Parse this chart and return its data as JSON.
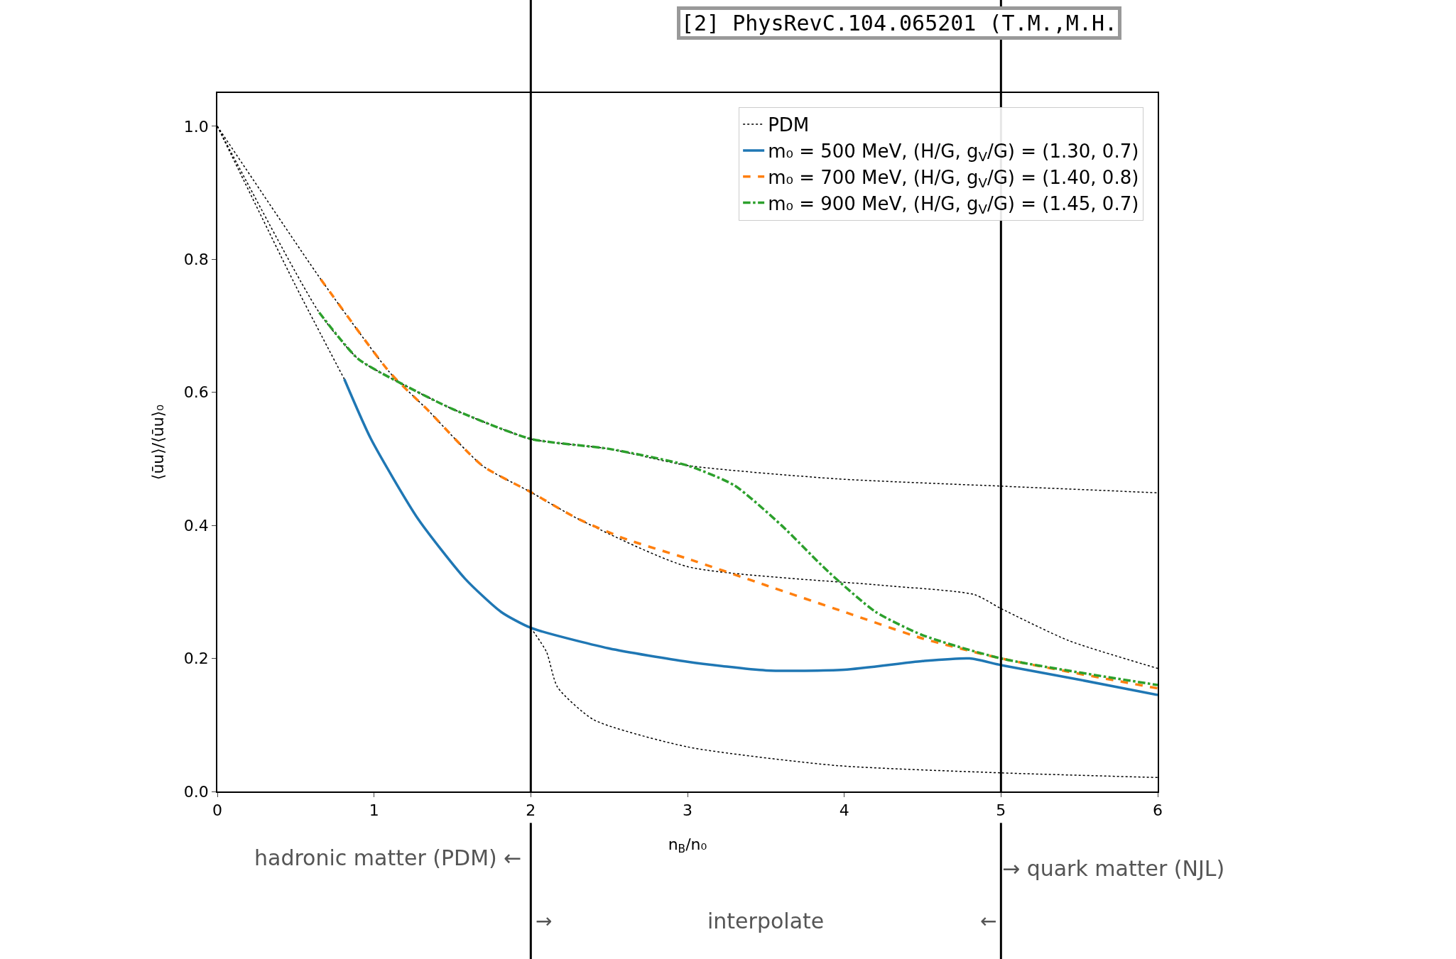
{
  "chart_data": {
    "type": "line",
    "xlabel": "n$_{B}$/n₀",
    "ylabel": "⟨ūu⟩/⟨ūu⟩₀",
    "xlim": [
      0,
      6
    ],
    "ylim": [
      0,
      1.05
    ],
    "xticks": [
      0,
      1,
      2,
      3,
      4,
      5,
      6
    ],
    "yticks": [
      {
        "value": 0,
        "label": "0.0"
      },
      0.2,
      0.4,
      0.6,
      0.8,
      {
        "value": 1,
        "label": "1.0"
      }
    ],
    "grid": false,
    "legend": "top right",
    "series": [
      {
        "name": "PDM",
        "color": "#000000",
        "line_style": "dotted",
        "x": [
          0,
          0.5,
          0.81,
          0.98,
          1.28,
          1.58,
          1.81,
          2,
          2.1,
          2.17,
          2.4,
          3,
          3.95,
          5,
          6
        ],
        "values": [
          1,
          0.76,
          0.62,
          null,
          null,
          null,
          null,
          0.246,
          0.21,
          0.157,
          0.108,
          0.067,
          0.039,
          0.028,
          0.021
        ]
      },
      {
        "color": "#000000",
        "line_style": "dotted",
        "x": [
          0,
          0.66,
          1.1,
          1.34,
          1.69,
          2,
          2.3,
          3,
          4.24,
          4.83,
          5,
          5.43,
          6
        ],
        "values": [
          1,
          0.77,
          0.63,
          0.574,
          0.49,
          0.45,
          0.41,
          0.338,
          0.31,
          0.296,
          0.275,
          0.227,
          0.185
        ]
      },
      {
        "color": "#000000",
        "line_style": "dotted",
        "x": [
          0,
          0.65,
          0.9,
          1.2,
          1.5,
          2,
          2.5,
          3,
          3.95,
          5,
          6
        ],
        "values": [
          1,
          0.72,
          0.65,
          0.61,
          0.575,
          0.53,
          0.515,
          0.49,
          0.47,
          0.459,
          0.449
        ]
      },
      {
        "name": "m₀ = 500 MeV, (H/G, g$_{V}$/G) = (1.30, 0.7)",
        "color": "#1f77b4",
        "line_style": "solid",
        "x": [
          0.81,
          0.98,
          1.28,
          1.58,
          1.81,
          2,
          2.5,
          3,
          3.5,
          4,
          4.5,
          4.8,
          5,
          5.5,
          6
        ],
        "values": [
          0.62,
          0.53,
          0.41,
          0.32,
          0.27,
          0.246,
          0.215,
          0.195,
          0.182,
          0.183,
          0.196,
          0.2,
          0.19,
          0.168,
          0.145
        ]
      },
      {
        "name": "m₀ = 700 MeV, (H/G, g$_{V}$/G) = (1.40, 0.8)",
        "color": "#ff7f0e",
        "line_style": "dashed",
        "x": [
          0.66,
          1.1,
          1.34,
          1.69,
          2,
          2.3,
          2.6,
          3,
          3.5,
          4,
          4.5,
          5,
          6
        ],
        "values": [
          0.77,
          0.63,
          0.574,
          0.49,
          0.45,
          0.41,
          0.38,
          0.35,
          0.31,
          0.27,
          0.23,
          0.2,
          0.155
        ]
      },
      {
        "name": "m₀ = 900 MeV, (H/G, g$_{V}$/G) = (1.45, 0.7)",
        "color": "#2ca02c",
        "line_style": "dashdot",
        "x": [
          0.65,
          0.9,
          1.2,
          1.5,
          2,
          2.5,
          3,
          3.3,
          3.6,
          3.9,
          4.2,
          4.5,
          5,
          6
        ],
        "values": [
          0.72,
          0.65,
          0.61,
          0.575,
          0.53,
          0.515,
          0.49,
          0.46,
          0.4,
          0.33,
          0.27,
          0.235,
          0.2,
          0.16
        ]
      }
    ],
    "ref_lines": [
      {
        "axis": "x",
        "value": 2,
        "color": "#000000"
      },
      {
        "axis": "x",
        "value": 5,
        "color": "#000000"
      }
    ],
    "annotations": [
      "hadronic matter (PDM) ←",
      "→ quark matter (NJL)",
      "→",
      "interpolate",
      "←",
      "[2] PhysRevC.104.065201 (T.M.,M.H."
    ]
  }
}
